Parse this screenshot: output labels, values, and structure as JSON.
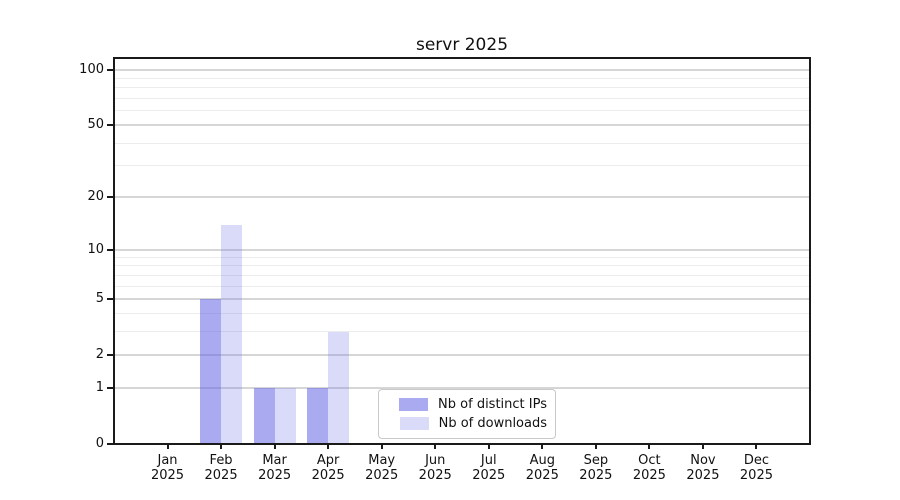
{
  "chart_data": {
    "type": "bar",
    "title": "servr 2025",
    "x_months": [
      "Jan",
      "Feb",
      "Mar",
      "Apr",
      "May",
      "Jun",
      "Jul",
      "Aug",
      "Sep",
      "Oct",
      "Nov",
      "Dec"
    ],
    "x_year": "2025",
    "categories": [
      "Jan 2025",
      "Feb 2025",
      "Mar 2025",
      "Apr 2025",
      "May 2025",
      "Jun 2025",
      "Jul 2025",
      "Aug 2025",
      "Sep 2025",
      "Oct 2025",
      "Nov 2025",
      "Dec 2025"
    ],
    "series": [
      {
        "name": "Nb of distinct IPs",
        "color": "rgba(100,100,230,0.55)",
        "color_on_white": "#aaaaef",
        "values": [
          0,
          5,
          1,
          1,
          0,
          0,
          0,
          0,
          0,
          0,
          0,
          0
        ]
      },
      {
        "name": "Nb of downloads",
        "color": "rgba(100,100,230,0.24)",
        "color_on_white": "#dcdcf8",
        "values": [
          0,
          14,
          1,
          3,
          0,
          0,
          0,
          0,
          0,
          0,
          0,
          0
        ]
      }
    ],
    "y_scale": "log10(value+1)",
    "y_ticks": [
      0,
      1,
      2,
      5,
      10,
      20,
      50,
      100
    ],
    "y_minor_gridlines": [
      3,
      4,
      6,
      7,
      8,
      9,
      30,
      40,
      60,
      70,
      80,
      90
    ],
    "ylim": [
      0,
      116
    ],
    "grid": true,
    "legend_position": "lower center inside",
    "colors": {
      "grid_major": "#d6d6d6",
      "grid_minor": "#ececec",
      "spine": "#1a1a1a",
      "text": "#111111",
      "background": "#ffffff"
    }
  }
}
